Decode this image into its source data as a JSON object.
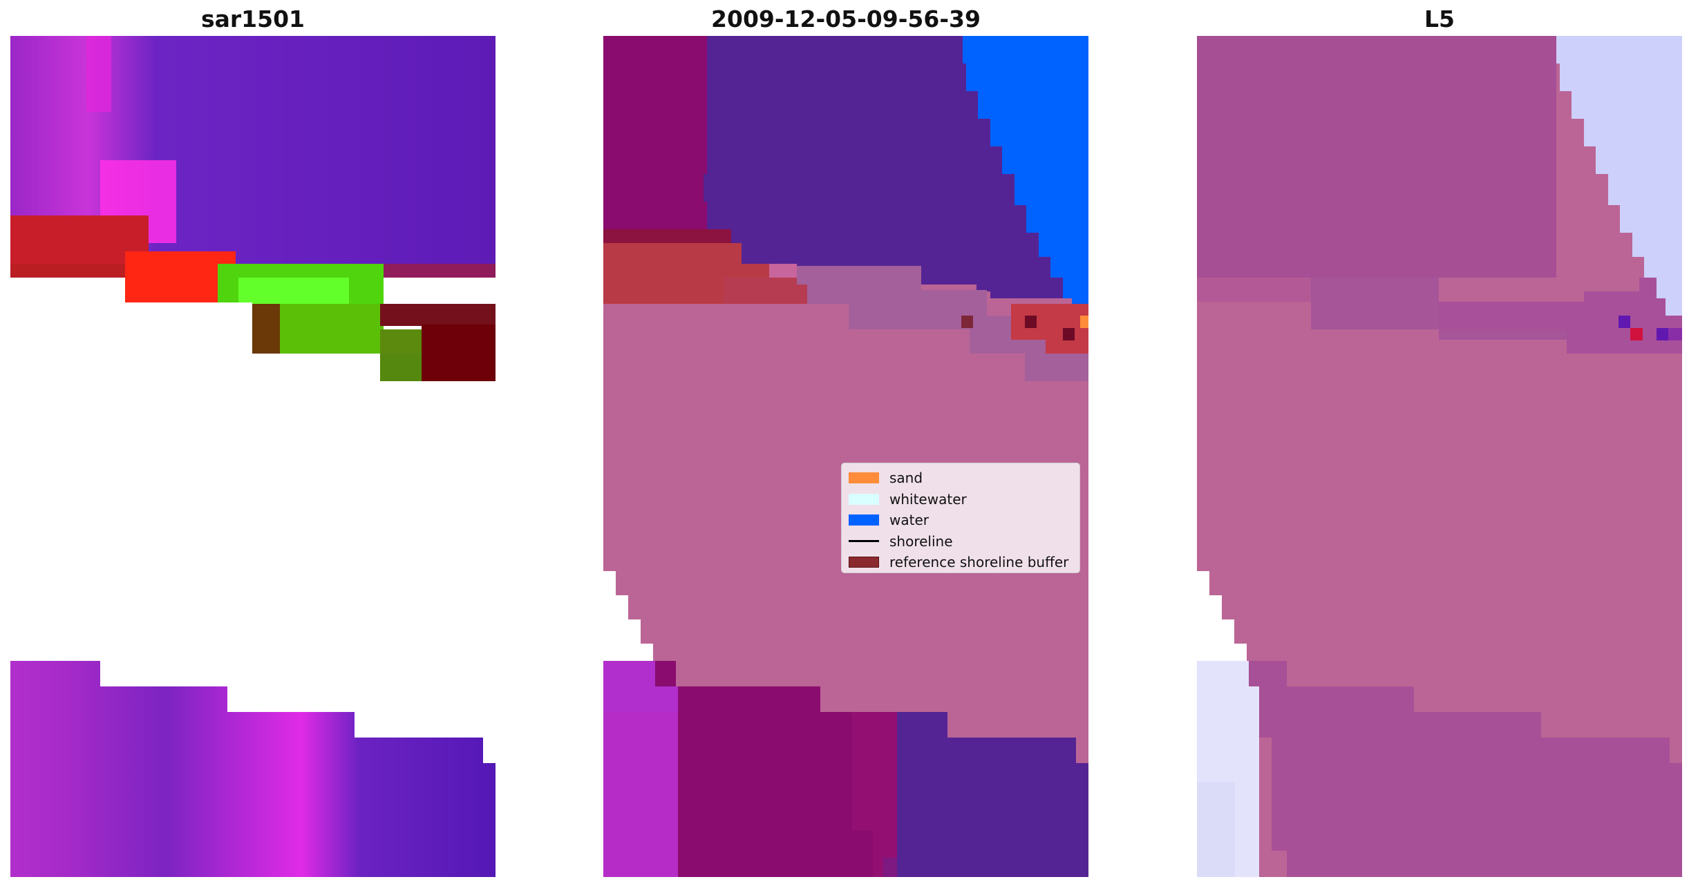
{
  "panels": [
    {
      "title": "sar1501"
    },
    {
      "title": "2009-12-05-09-56-39"
    },
    {
      "title": "L5"
    }
  ],
  "legend": {
    "items": [
      {
        "label": "sand",
        "color": "#ff8c3a",
        "kind": "patch"
      },
      {
        "label": "whitewater",
        "color": "#d9ffff",
        "kind": "patch"
      },
      {
        "label": "water",
        "color": "#0062ff",
        "kind": "patch"
      },
      {
        "label": "shoreline",
        "color": "#000000",
        "kind": "line"
      },
      {
        "label": "reference shoreline buffer",
        "color": "#8b2a2e",
        "kind": "patch"
      }
    ]
  },
  "colors": {
    "water": "#0062ff",
    "sand": "#ff8c3a",
    "buffer_red": "#b83a46",
    "land_pink": "#bb6596",
    "deep_purple": "#552494",
    "magenta": "#8a0c6e",
    "lavender": "#cdd0fa"
  }
}
